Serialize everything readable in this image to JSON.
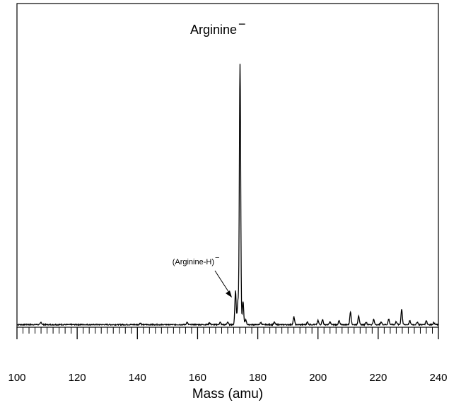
{
  "chart_data": {
    "type": "line",
    "xlabel": "Mass (amu)",
    "ylabel": "",
    "xlim": [
      100,
      240
    ],
    "ylim": [
      0,
      100
    ],
    "x_ticks": [
      100,
      120,
      140,
      160,
      180,
      200,
      220,
      240
    ],
    "x_minor_step": 2,
    "grid": false,
    "baseline_noise": 0.4,
    "peaks": [
      {
        "x": 108.0,
        "y": 0.9
      },
      {
        "x": 141.0,
        "y": 0.6
      },
      {
        "x": 156.5,
        "y": 0.9
      },
      {
        "x": 164.0,
        "y": 0.7
      },
      {
        "x": 167.5,
        "y": 0.9
      },
      {
        "x": 170.0,
        "y": 1.0
      },
      {
        "x": 172.6,
        "y": 13.0
      },
      {
        "x": 173.4,
        "y": 9.0
      },
      {
        "x": 174.1,
        "y": 100.0
      },
      {
        "x": 175.1,
        "y": 9.0
      },
      {
        "x": 176.0,
        "y": 2.0
      },
      {
        "x": 181.0,
        "y": 0.8
      },
      {
        "x": 185.5,
        "y": 0.9
      },
      {
        "x": 192.0,
        "y": 3.0
      },
      {
        "x": 196.5,
        "y": 1.0
      },
      {
        "x": 200.0,
        "y": 1.6
      },
      {
        "x": 201.5,
        "y": 2.0
      },
      {
        "x": 204.0,
        "y": 1.0
      },
      {
        "x": 207.0,
        "y": 1.5
      },
      {
        "x": 210.8,
        "y": 5.0
      },
      {
        "x": 213.5,
        "y": 3.5
      },
      {
        "x": 216.0,
        "y": 1.0
      },
      {
        "x": 218.5,
        "y": 2.0
      },
      {
        "x": 221.0,
        "y": 1.0
      },
      {
        "x": 223.5,
        "y": 2.2
      },
      {
        "x": 226.0,
        "y": 1.2
      },
      {
        "x": 227.8,
        "y": 6.0
      },
      {
        "x": 230.5,
        "y": 1.4
      },
      {
        "x": 233.0,
        "y": 1.0
      },
      {
        "x": 236.0,
        "y": 1.6
      },
      {
        "x": 238.5,
        "y": 0.8
      }
    ],
    "annotations": [
      {
        "id": "main",
        "label": "Arginine",
        "superscript": "−",
        "x": 174.1
      },
      {
        "id": "minus-h",
        "label": "(Arginine-H)",
        "superscript": "−",
        "x": 172.6,
        "y": 12
      }
    ]
  }
}
